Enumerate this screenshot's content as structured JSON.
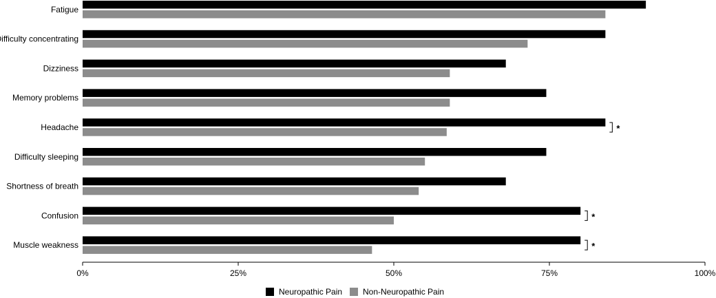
{
  "chart_data": {
    "type": "bar",
    "orientation": "horizontal",
    "categories": [
      "Fatigue",
      "Difficulty concentrating",
      "Dizziness",
      "Memory problems",
      "Headache",
      "Difficulty sleeping",
      "Shortness of breath",
      "Confusion",
      "Muscle weakness"
    ],
    "series": [
      {
        "name": "Neuropathic Pain",
        "color": "#000000",
        "values": [
          90.5,
          84,
          68,
          74.5,
          84,
          74.5,
          68,
          80,
          80
        ]
      },
      {
        "name": "Non-Neuropathic Pain",
        "color": "#8c8c8c",
        "values": [
          84,
          71.5,
          59,
          59,
          58.5,
          55,
          54,
          50,
          46.5
        ]
      }
    ],
    "significance": [
      "",
      "",
      "",
      "",
      "*",
      "",
      "",
      "*",
      "*"
    ],
    "xticks": [
      "0%",
      "25%",
      "50%",
      "75%",
      "100%"
    ],
    "xlim": [
      0,
      100
    ],
    "grid": false,
    "legend_position": "bottom-center"
  }
}
